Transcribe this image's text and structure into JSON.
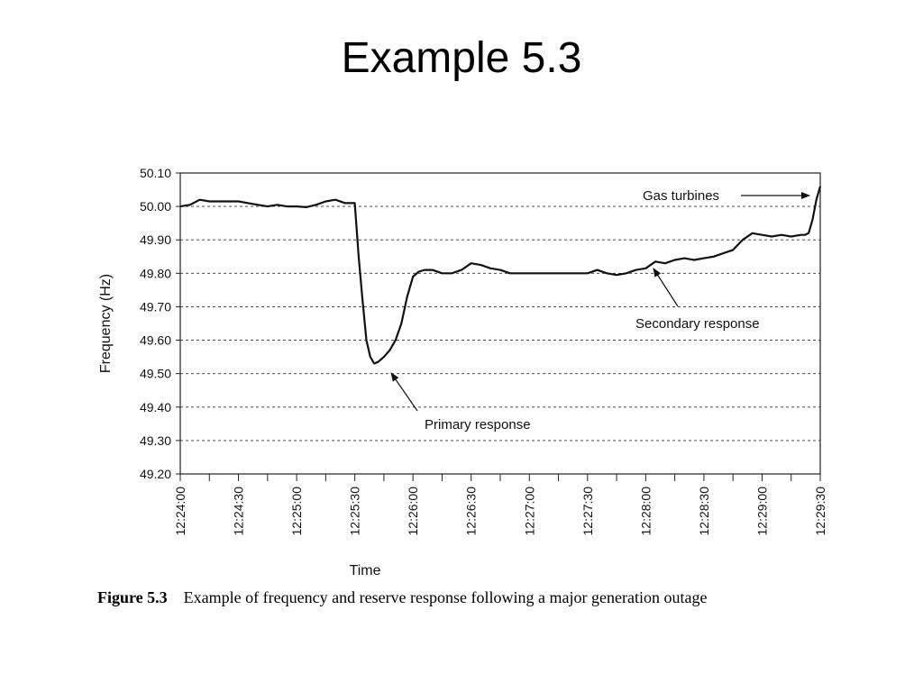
{
  "slide": {
    "title": "Example 5.3"
  },
  "caption": {
    "figure_label": "Figure 5.3",
    "text": "Example of frequency and reserve response following a major generation outage"
  },
  "chart_data": {
    "type": "line",
    "title": "",
    "xlabel": "Time",
    "ylabel": "Frequency (Hz)",
    "ylim": [
      49.2,
      50.1
    ],
    "xlim": [
      "12:24:00",
      "12:29:30"
    ],
    "grid": "horizontal dashed",
    "y_ticks": [
      "50.10",
      "50.00",
      "49.90",
      "49.80",
      "49.70",
      "49.60",
      "49.50",
      "49.40",
      "49.30",
      "49.20"
    ],
    "x_ticks": [
      "12:24:00",
      "12:24:30",
      "12:25:00",
      "12:25:30",
      "12:26:00",
      "12:26:30",
      "12:27:00",
      "12:27:30",
      "12:28:00",
      "12:28:30",
      "12:29:00",
      "12:29:30"
    ],
    "series": [
      {
        "x": [
          "12:24:00",
          "12:24:05",
          "12:24:10",
          "12:24:15",
          "12:24:20",
          "12:24:25",
          "12:24:30",
          "12:24:35",
          "12:24:40",
          "12:24:45",
          "12:24:50",
          "12:24:55",
          "12:25:00",
          "12:25:05",
          "12:25:10",
          "12:25:15",
          "12:25:20",
          "12:25:25",
          "12:25:30",
          "12:25:32",
          "12:25:34",
          "12:25:36",
          "12:25:38",
          "12:25:40",
          "12:25:42",
          "12:25:45",
          "12:25:48",
          "12:25:51",
          "12:25:54",
          "12:25:57",
          "12:26:00",
          "12:26:03",
          "12:26:06",
          "12:26:10",
          "12:26:15",
          "12:26:20",
          "12:26:25",
          "12:26:30",
          "12:26:35",
          "12:26:40",
          "12:26:45",
          "12:26:50",
          "12:26:55",
          "12:27:00",
          "12:27:10",
          "12:27:20",
          "12:27:30",
          "12:27:35",
          "12:27:40",
          "12:27:45",
          "12:27:50",
          "12:27:55",
          "12:28:00",
          "12:28:05",
          "12:28:10",
          "12:28:15",
          "12:28:20",
          "12:28:25",
          "12:28:30",
          "12:28:35",
          "12:28:40",
          "12:28:45",
          "12:28:50",
          "12:28:55",
          "12:29:00",
          "12:29:05",
          "12:29:10",
          "12:29:15",
          "12:29:20",
          "12:29:22",
          "12:29:24",
          "12:29:26",
          "12:29:28",
          "12:29:30"
        ],
        "y": [
          50.0,
          50.005,
          50.02,
          50.015,
          50.015,
          50.015,
          50.015,
          50.01,
          50.005,
          50.0,
          50.005,
          50.0,
          50.0,
          49.998,
          50.005,
          50.015,
          50.02,
          50.01,
          50.01,
          49.85,
          49.72,
          49.6,
          49.55,
          49.53,
          49.535,
          49.55,
          49.57,
          49.6,
          49.65,
          49.73,
          49.79,
          49.805,
          49.81,
          49.81,
          49.8,
          49.8,
          49.81,
          49.83,
          49.825,
          49.815,
          49.81,
          49.8,
          49.8,
          49.8,
          49.8,
          49.8,
          49.8,
          49.81,
          49.8,
          49.795,
          49.8,
          49.81,
          49.815,
          49.835,
          49.83,
          49.84,
          49.845,
          49.84,
          49.845,
          49.85,
          49.86,
          49.87,
          49.9,
          49.92,
          49.915,
          49.91,
          49.915,
          49.91,
          49.915,
          49.915,
          49.92,
          49.96,
          50.02,
          50.06
        ]
      }
    ],
    "annotations": [
      {
        "text": "Gas turbines"
      },
      {
        "text": "Secondary response"
      },
      {
        "text": "Primary response"
      }
    ]
  }
}
